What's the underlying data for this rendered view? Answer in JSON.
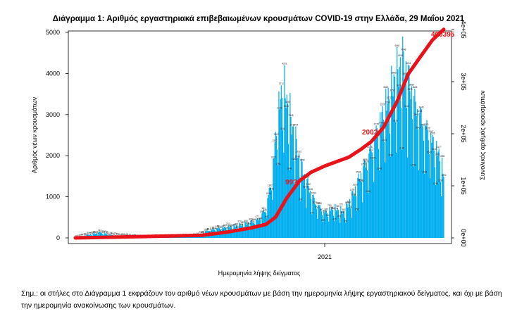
{
  "page": {
    "footnote": "Σημ.: οι στήλες στο Διάγραμμα 1 εκφράζουν τον αριθμό νέων κρουσμάτων με βάση την ημερομηνία λήψης εργαστηριακού δείγματος, και όχι με βάση την ημερομηνία ανακοίνωσης των κρουσμάτων."
  },
  "chart_data": {
    "type": "bar",
    "title": "Διάγραμμα 1: Αριθμός εργαστηριακά επιβεβαιωμένων κρουσμάτων COVID-19 στην Ελλάδα, 29 Μαΐου 2021",
    "xlabel": "Ημερομηνία λήψης δείγματος",
    "ylabel": "Αριθμός νέων κρουσμάτων",
    "y2label": "Συνολικός αριθμός κρουσμάτων",
    "x_tick_labels": [
      "2021"
    ],
    "ylim": [
      0,
      5000
    ],
    "yticks": [
      0,
      1000,
      2000,
      3000,
      4000,
      5000
    ],
    "y2lim": [
      0,
      400000
    ],
    "y2ticks": [
      "0e+00",
      "1e+05",
      "2e+05",
      "3e+05",
      "4e+05"
    ],
    "y2tick_values": [
      0,
      100000,
      200000,
      300000,
      400000
    ],
    "bar_color": "#00aeef",
    "line_color": "#e8121a",
    "x_start": "2020-02-26",
    "x_end": "2021-05-29",
    "x_tick_date": "2021-01-01",
    "annotations": [
      "400395",
      "200?",
      "99?"
    ],
    "daily_anchors": [
      [
        "2020-02-26",
        3
      ],
      [
        "2020-03-15",
        80
      ],
      [
        "2020-03-28",
        130
      ],
      [
        "2020-04-10",
        70
      ],
      [
        "2020-04-22",
        50
      ],
      [
        "2020-05-15",
        15
      ],
      [
        "2020-06-10",
        20
      ],
      [
        "2020-07-05",
        30
      ],
      [
        "2020-07-25",
        45
      ],
      [
        "2020-08-10",
        180
      ],
      [
        "2020-08-25",
        240
      ],
      [
        "2020-09-10",
        270
      ],
      [
        "2020-09-25",
        330
      ],
      [
        "2020-10-10",
        420
      ],
      [
        "2020-10-20",
        700
      ],
      [
        "2020-10-28",
        1500
      ],
      [
        "2020-11-02",
        2600
      ],
      [
        "2020-11-07",
        3300
      ],
      [
        "2020-11-11",
        3500
      ],
      [
        "2020-11-16",
        3100
      ],
      [
        "2020-11-24",
        2400
      ],
      [
        "2020-12-02",
        1700
      ],
      [
        "2020-12-10",
        1300
      ],
      [
        "2020-12-20",
        850
      ],
      [
        "2021-01-01",
        600
      ],
      [
        "2021-01-12",
        700
      ],
      [
        "2021-01-25",
        600
      ],
      [
        "2021-02-05",
        1000
      ],
      [
        "2021-02-15",
        1500
      ],
      [
        "2021-02-28",
        2100
      ],
      [
        "2021-03-10",
        2700
      ],
      [
        "2021-03-22",
        3300
      ],
      [
        "2021-03-30",
        3700
      ],
      [
        "2021-04-08",
        4100
      ],
      [
        "2021-04-15",
        3700
      ],
      [
        "2021-04-22",
        3200
      ],
      [
        "2021-05-02",
        2800
      ],
      [
        "2021-05-12",
        2400
      ],
      [
        "2021-05-22",
        2000
      ],
      [
        "2021-05-29",
        1500
      ]
    ],
    "cumulative_anchors": [
      [
        "2020-02-26",
        0
      ],
      [
        "2020-06-01",
        3000
      ],
      [
        "2020-08-01",
        5000
      ],
      [
        "2020-09-01",
        11000
      ],
      [
        "2020-10-01",
        19000
      ],
      [
        "2020-10-20",
        26000
      ],
      [
        "2020-11-01",
        40000
      ],
      [
        "2020-11-15",
        77000
      ],
      [
        "2020-12-01",
        110000
      ],
      [
        "2020-12-15",
        126000
      ],
      [
        "2021-01-01",
        138000
      ],
      [
        "2021-01-31",
        155000
      ],
      [
        "2021-02-15",
        170000
      ],
      [
        "2021-02-28",
        185000
      ],
      [
        "2021-03-15",
        212000
      ],
      [
        "2021-04-01",
        262000
      ],
      [
        "2021-04-15",
        315000
      ],
      [
        "2021-05-01",
        350000
      ],
      [
        "2021-05-15",
        380000
      ],
      [
        "2021-05-29",
        400395
      ]
    ]
  }
}
